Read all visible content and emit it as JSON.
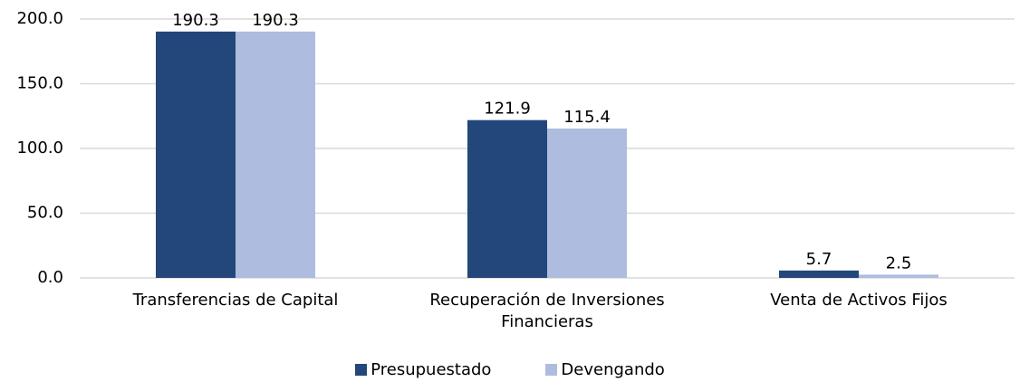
{
  "chart_data": {
    "type": "bar",
    "categories": [
      "Transferencias de Capital",
      "Recuperación de Inversiones Financieras",
      "Venta de Activos Fijos"
    ],
    "series": [
      {
        "name": "Presupuestado",
        "color": "#23477a",
        "values": [
          190.3,
          121.9,
          5.7
        ]
      },
      {
        "name": "Devengando",
        "color": "#adbcdf",
        "values": [
          190.3,
          115.4,
          2.5
        ]
      }
    ],
    "ylim": [
      0,
      200
    ],
    "yticks": [
      {
        "value": 0,
        "label": "0.0"
      },
      {
        "value": 50,
        "label": "50.0"
      },
      {
        "value": 100,
        "label": "100.0"
      },
      {
        "value": 150,
        "label": "150.0"
      },
      {
        "value": 200,
        "label": "200.0"
      }
    ],
    "grid": true,
    "legend": "bottom"
  }
}
